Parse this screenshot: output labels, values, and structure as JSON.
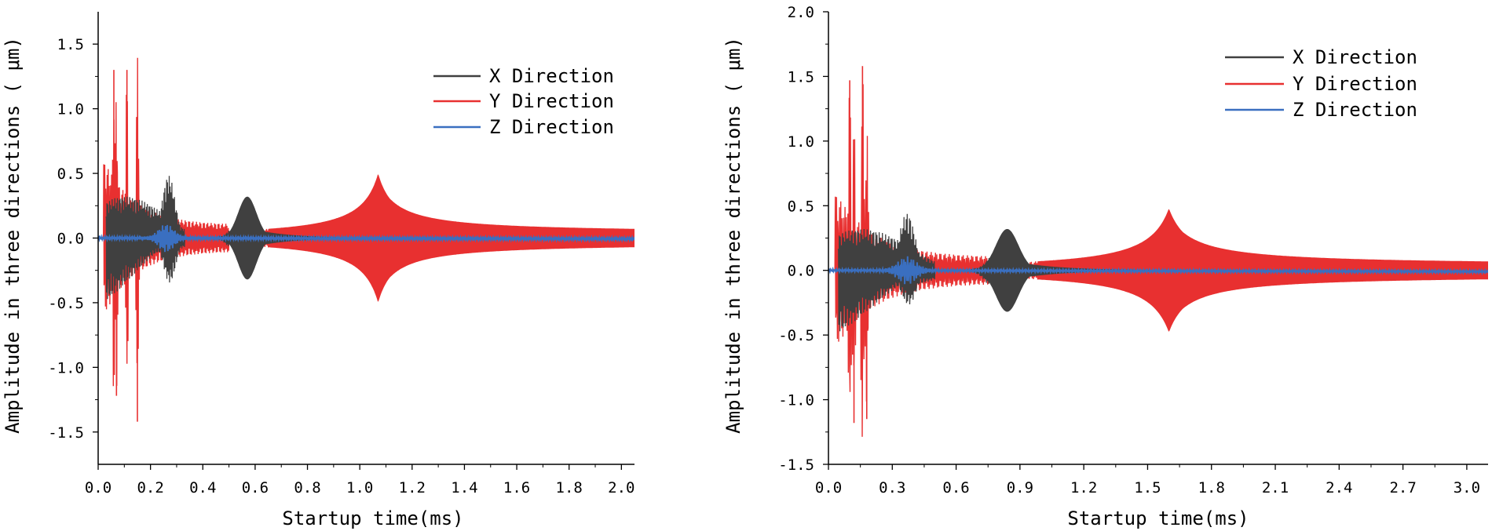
{
  "chart_data": [
    {
      "type": "line",
      "title": "",
      "xlabel": "Startup time(ms)",
      "ylabel": "Amplitude in three directions ( μm)",
      "xlim": [
        0.0,
        2.05
      ],
      "ylim": [
        -1.75,
        1.75
      ],
      "xticks": [
        "0.0",
        "0.2",
        "0.4",
        "0.6",
        "0.8",
        "1.0",
        "1.2",
        "1.4",
        "1.6",
        "1.8",
        "2.0"
      ],
      "yticks": [
        "-1.5",
        "-1.0",
        "-0.5",
        "0.0",
        "0.5",
        "1.0",
        "1.5"
      ],
      "legend_position": "top-right",
      "series": [
        {
          "name": "X Direction",
          "color": "#404040",
          "peaks": [
            [
              0.05,
              0.45
            ],
            [
              0.27,
              0.5
            ],
            [
              0.57,
              0.32
            ]
          ],
          "burst_centers": [
            0.27,
            0.57
          ],
          "decay_end": 0.85
        },
        {
          "name": "Y Direction",
          "color": "#e83030",
          "spikes": [
            [
              0.06,
              1.3
            ],
            [
              0.11,
              1.3
            ],
            [
              0.15,
              -1.42
            ],
            [
              0.07,
              -1.22
            ]
          ],
          "resonance_center": 1.07,
          "resonance_amplitude": 0.5,
          "tail_amplitude": 0.04
        },
        {
          "name": "Z Direction",
          "color": "#3a6fc0",
          "burst_center": 0.26,
          "burst_amplitude": 0.1
        }
      ]
    },
    {
      "type": "line",
      "title": "",
      "xlabel": "Startup time(ms)",
      "ylabel": "Amplitude in three directions ( μm)",
      "xlim": [
        0.0,
        3.1
      ],
      "ylim": [
        -1.5,
        2.0
      ],
      "xticks": [
        "0.0",
        "0.3",
        "0.6",
        "0.9",
        "1.2",
        "1.5",
        "1.8",
        "2.1",
        "2.4",
        "2.7",
        "3.0"
      ],
      "yticks": [
        "-1.5",
        "-1.0",
        "-0.5",
        "0.0",
        "0.5",
        "1.0",
        "1.5",
        "2.0"
      ],
      "legend_position": "top-right",
      "series": [
        {
          "name": "X Direction",
          "color": "#404040",
          "peaks": [
            [
              0.06,
              0.55
            ],
            [
              0.37,
              0.45
            ],
            [
              0.84,
              0.32
            ]
          ],
          "burst_centers": [
            0.37,
            0.84
          ],
          "decay_end": 1.25
        },
        {
          "name": "Y Direction",
          "color": "#e83030",
          "spikes": [
            [
              0.1,
              1.47
            ],
            [
              0.16,
              1.58
            ],
            [
              0.12,
              -1.18
            ],
            [
              0.18,
              -1.15
            ]
          ],
          "resonance_center": 1.6,
          "resonance_amplitude": 0.48,
          "tail_amplitude": 0.04
        },
        {
          "name": "Z Direction",
          "color": "#3a6fc0",
          "burst_center": 0.37,
          "burst_amplitude": 0.1
        }
      ]
    }
  ]
}
